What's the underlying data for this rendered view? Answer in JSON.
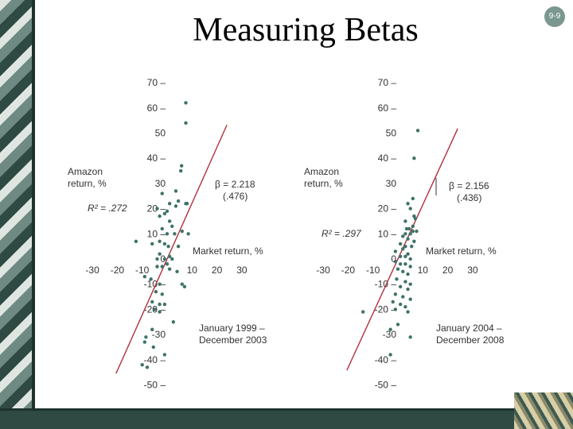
{
  "slide": {
    "title": "Measuring Betas",
    "number": "9-9"
  },
  "chart_data": [
    {
      "type": "scatter",
      "title": "",
      "xlabel": "Market return, %",
      "ylabel_lines": [
        "Amazon",
        "return, %"
      ],
      "period_lines": [
        "January 1999 –",
        "December 2003"
      ],
      "beta_label": "β = 2.218",
      "beta_se": "(.476)",
      "r2_label": "R² = .272",
      "x_ticks": [
        "-30",
        "-20",
        "-10",
        "0",
        "10",
        "20",
        "30"
      ],
      "y_ticks": [
        "70 –",
        "60 –",
        "50",
        "40 –",
        "30",
        "20 –",
        "10 –",
        "0",
        "-10 –",
        "-20 –",
        "-30",
        "-40 –",
        "-50 –"
      ],
      "xlim": [
        -30,
        30
      ],
      "ylim": [
        -50,
        70
      ],
      "fit_line": {
        "intercept": 0,
        "slope": 2.218
      },
      "points": [
        [
          7.5,
          62
        ],
        [
          7.5,
          54
        ],
        [
          5.8,
          37
        ],
        [
          5.5,
          35
        ],
        [
          3.5,
          27
        ],
        [
          4.5,
          23
        ],
        [
          7.5,
          22
        ],
        [
          8,
          22
        ],
        [
          1,
          22
        ],
        [
          3.5,
          21
        ],
        [
          -2,
          26
        ],
        [
          -4,
          20
        ],
        [
          -1,
          18
        ],
        [
          0,
          19
        ],
        [
          -3,
          17
        ],
        [
          1,
          15
        ],
        [
          2,
          13
        ],
        [
          -2,
          12
        ],
        [
          0,
          10
        ],
        [
          3,
          10
        ],
        [
          6,
          11
        ],
        [
          8.5,
          10
        ],
        [
          -12.5,
          7
        ],
        [
          -6,
          6
        ],
        [
          -3,
          7
        ],
        [
          -1,
          6
        ],
        [
          0.5,
          5
        ],
        [
          4.5,
          5
        ],
        [
          -3,
          2
        ],
        [
          1,
          1
        ],
        [
          -4,
          0
        ],
        [
          -1,
          0
        ],
        [
          2,
          0
        ],
        [
          -2,
          -3
        ],
        [
          -4,
          -3
        ],
        [
          0,
          -2
        ],
        [
          1,
          -4
        ],
        [
          4,
          -5
        ],
        [
          -9,
          -7
        ],
        [
          -6.5,
          -8
        ],
        [
          -3,
          -10
        ],
        [
          6,
          -10
        ],
        [
          7,
          -11
        ],
        [
          -4.5,
          -13
        ],
        [
          -2,
          -14
        ],
        [
          -6,
          -17
        ],
        [
          -1,
          -18
        ],
        [
          -3,
          -18
        ],
        [
          -5,
          -20
        ],
        [
          -3,
          -21
        ],
        [
          2.5,
          -25
        ],
        [
          -6,
          -28
        ],
        [
          -8.5,
          -31
        ],
        [
          -9,
          -33
        ],
        [
          -5.5,
          -35
        ],
        [
          -1,
          -38
        ],
        [
          -10,
          -42
        ],
        [
          -8,
          -43
        ]
      ]
    },
    {
      "type": "scatter",
      "title": "",
      "xlabel": "Market return, %",
      "ylabel_lines": [
        "Amazon",
        "return, %"
      ],
      "period_lines": [
        "January 2004 –",
        "December 2008"
      ],
      "beta_label": "β = 2.156",
      "beta_se": "(.436)",
      "r2_label": "R² = .297",
      "x_ticks": [
        "-30",
        "-20",
        "-10",
        "0",
        "10",
        "20",
        "30"
      ],
      "y_ticks": [
        "70 –",
        "60 –",
        "50",
        "40 –",
        "30",
        "20 –",
        "10 –",
        "0",
        "-10 –",
        "-20 –",
        "-30",
        "-40 –",
        "-50 –"
      ],
      "xlim": [
        -30,
        30
      ],
      "ylim": [
        -50,
        70
      ],
      "fit_line": {
        "intercept": 0,
        "slope": 2.156
      },
      "points": [
        [
          8,
          51
        ],
        [
          6.5,
          40
        ],
        [
          6,
          24
        ],
        [
          4,
          22
        ],
        [
          5,
          20
        ],
        [
          6.5,
          17
        ],
        [
          7,
          16
        ],
        [
          3,
          15
        ],
        [
          6,
          13
        ],
        [
          3.5,
          12
        ],
        [
          4.5,
          12
        ],
        [
          6,
          11
        ],
        [
          7.5,
          11
        ],
        [
          3,
          10
        ],
        [
          5,
          10
        ],
        [
          2,
          9
        ],
        [
          4,
          8
        ],
        [
          6.5,
          7
        ],
        [
          1,
          6
        ],
        [
          3,
          5
        ],
        [
          5.5,
          5
        ],
        [
          2,
          4
        ],
        [
          -1,
          3
        ],
        [
          4,
          2
        ],
        [
          1,
          1
        ],
        [
          3,
          1
        ],
        [
          5,
          0
        ],
        [
          -1,
          -1
        ],
        [
          1,
          -2
        ],
        [
          3,
          -2
        ],
        [
          5,
          -3
        ],
        [
          0,
          -4
        ],
        [
          2,
          -5
        ],
        [
          4,
          -6
        ],
        [
          -0.5,
          -8
        ],
        [
          3,
          -9
        ],
        [
          5,
          -10
        ],
        [
          1,
          -11
        ],
        [
          4,
          -12
        ],
        [
          -1,
          -14
        ],
        [
          2,
          -15
        ],
        [
          5,
          -16
        ],
        [
          -2,
          -17
        ],
        [
          1,
          -18
        ],
        [
          3,
          -19
        ],
        [
          -1,
          -20
        ],
        [
          4,
          -21
        ],
        [
          -14,
          -21
        ],
        [
          0,
          -26
        ],
        [
          -3,
          -28
        ],
        [
          5,
          -31
        ],
        [
          -3,
          -38
        ]
      ]
    }
  ]
}
